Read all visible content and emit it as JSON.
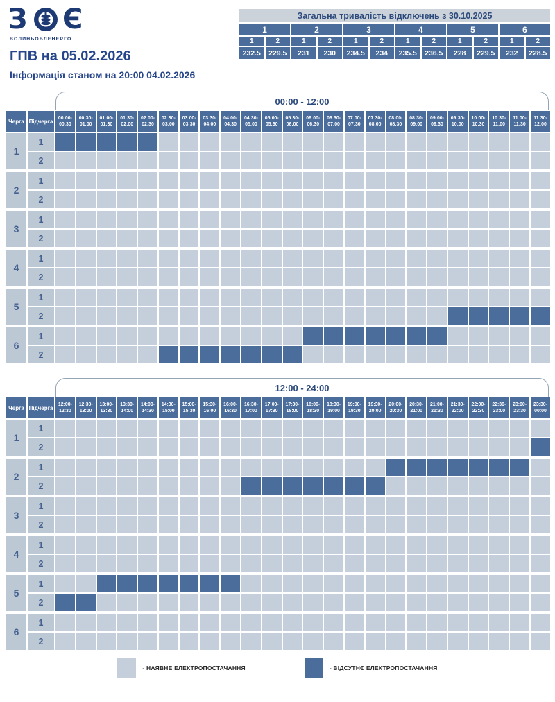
{
  "logo": {
    "left_glyph": "З",
    "right_glyph": "Є",
    "subtext": "ВОЛИНЬОБЛЕНЕРГО"
  },
  "title": "ГПВ на 05.02.2026",
  "subtitle": "Інформація станом на 20:00 04.02.2026",
  "summary": {
    "title": "Загальна тривалість відключень з 30.10.2025",
    "queues": [
      "1",
      "2",
      "3",
      "4",
      "5",
      "6"
    ],
    "subqueues": [
      "1",
      "2",
      "1",
      "2",
      "1",
      "2",
      "1",
      "2",
      "1",
      "2",
      "1",
      "2"
    ],
    "values": [
      "232.5",
      "229.5",
      "231",
      "230",
      "234.5",
      "234",
      "235.5",
      "236.5",
      "228",
      "229.5",
      "232",
      "228.5"
    ]
  },
  "grid_labels": {
    "queue": "Черга",
    "subqueue": "Підчерга"
  },
  "grids": [
    {
      "band_label": "00:00 - 12:00",
      "col_headers": [
        "00:00-00:30",
        "00:30-01:00",
        "01:00-01:30",
        "01:30-02:00",
        "02:00-02:30",
        "02:30-03:00",
        "03:00-03:30",
        "03:30-04:00",
        "04:00-04:30",
        "04:30-05:00",
        "05:00-05:30",
        "05:30-06:00",
        "06:00-06:30",
        "06:30-07:00",
        "07:00-07:30",
        "07:30-08:00",
        "08:00-08:30",
        "08:30-09:00",
        "09:00-09:30",
        "09:30-10:00",
        "10:00-10:30",
        "10:30-11:00",
        "11:00-11:30",
        "11:30-12:00"
      ],
      "rows": [
        {
          "queue": "1",
          "sub": "1",
          "off": [
            0,
            1,
            2,
            3,
            4
          ],
          "off_range": "00:00-02:30"
        },
        {
          "queue": "1",
          "sub": "2",
          "off": [],
          "off_range": ""
        },
        {
          "queue": "2",
          "sub": "1",
          "off": [],
          "off_range": ""
        },
        {
          "queue": "2",
          "sub": "2",
          "off": [],
          "off_range": ""
        },
        {
          "queue": "3",
          "sub": "1",
          "off": [],
          "off_range": ""
        },
        {
          "queue": "3",
          "sub": "2",
          "off": [],
          "off_range": ""
        },
        {
          "queue": "4",
          "sub": "1",
          "off": [],
          "off_range": ""
        },
        {
          "queue": "4",
          "sub": "2",
          "off": [],
          "off_range": ""
        },
        {
          "queue": "5",
          "sub": "1",
          "off": [],
          "off_range": ""
        },
        {
          "queue": "5",
          "sub": "2",
          "off": [
            19,
            20,
            21,
            22,
            23
          ],
          "off_range": "09:30-12:00"
        },
        {
          "queue": "6",
          "sub": "1",
          "off": [
            12,
            13,
            14,
            15,
            16,
            17,
            18
          ],
          "off_range": "06:00-09:30"
        },
        {
          "queue": "6",
          "sub": "2",
          "off": [
            5,
            6,
            7,
            8,
            9,
            10,
            11
          ],
          "off_range": "02:30-06:00"
        }
      ]
    },
    {
      "band_label": "12:00 - 24:00",
      "col_headers": [
        "12:00-12:30",
        "12:30-13:00",
        "13:00-13:30",
        "13:30-14:00",
        "14:00-14:30",
        "14:30-15:00",
        "15:00-15:30",
        "15:30-16:00",
        "16:00-16:30",
        "16:30-17:00",
        "17:00-17:30",
        "17:30-18:00",
        "18:00-18:30",
        "18:30-19:00",
        "19:00-19:30",
        "19:30-20:00",
        "20:00-20:30",
        "20:30-21:00",
        "21:00-21:30",
        "21:30-22:00",
        "22:00-22:30",
        "22:30-23:00",
        "23:00-23:30",
        "23:30-00:00"
      ],
      "rows": [
        {
          "queue": "1",
          "sub": "1",
          "off": [],
          "off_range": ""
        },
        {
          "queue": "1",
          "sub": "2",
          "off": [
            23
          ],
          "off_range": "23:30-00:00"
        },
        {
          "queue": "2",
          "sub": "1",
          "off": [
            16,
            17,
            18,
            19,
            20,
            21,
            22
          ],
          "off_range": "20:00-23:30"
        },
        {
          "queue": "2",
          "sub": "2",
          "off": [
            9,
            10,
            11,
            12,
            13,
            14,
            15
          ],
          "off_range": "16:30-20:00"
        },
        {
          "queue": "3",
          "sub": "1",
          "off": [],
          "off_range": ""
        },
        {
          "queue": "3",
          "sub": "2",
          "off": [],
          "off_range": ""
        },
        {
          "queue": "4",
          "sub": "1",
          "off": [],
          "off_range": ""
        },
        {
          "queue": "4",
          "sub": "2",
          "off": [],
          "off_range": ""
        },
        {
          "queue": "5",
          "sub": "1",
          "off": [
            2,
            3,
            4,
            5,
            6,
            7,
            8
          ],
          "off_range": "13:00-16:30"
        },
        {
          "queue": "5",
          "sub": "2",
          "off": [
            0,
            1
          ],
          "off_range": "12:00-13:00"
        },
        {
          "queue": "6",
          "sub": "1",
          "off": [],
          "off_range": ""
        },
        {
          "queue": "6",
          "sub": "2",
          "off": [],
          "off_range": ""
        }
      ]
    }
  ],
  "legend": [
    {
      "label": "- НАЯВНЕ ЕЛЕКТРОПОСТАЧАННЯ",
      "color": "#c5cfdc"
    },
    {
      "label": "- ВІДСУТНЄ ЕЛЕКТРОПОСТАЧАННЯ",
      "color": "#4a6d9c"
    }
  ],
  "colors": {
    "outage_cell": "#4a6d9c",
    "power_cell": "#c5cfdc",
    "label_cell": "#bdc8d5",
    "navy_logo": "#1e3a74",
    "title_text": "#26458a",
    "summary_title_bg": "#ccd2da"
  }
}
